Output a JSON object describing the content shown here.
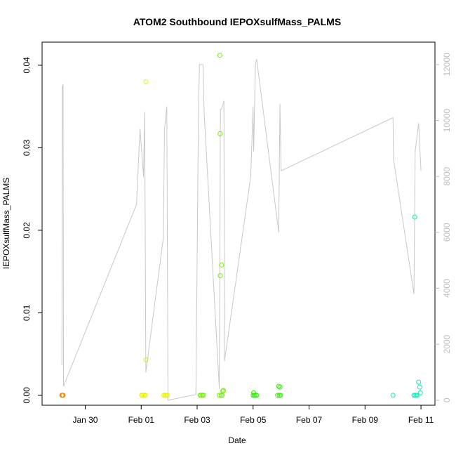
{
  "chart_data": {
    "type": "scatter",
    "title": "ATOM2 Southbound IEPOXsulfMass_PALMS",
    "xlabel": "Date",
    "ylabel": "IEPOXsulfMass_PALMS",
    "xlim": [
      "2017-01-28T11:00",
      "2017-02-11T12:00"
    ],
    "ylim": [
      -0.0012,
      0.0428
    ],
    "y2lim": [
      -180,
      12800
    ],
    "x_ticks": [
      {
        "label": "Jan 30",
        "date": "2017-01-30T00:00"
      },
      {
        "label": "Feb 01",
        "date": "2017-02-01T00:00"
      },
      {
        "label": "Feb 03",
        "date": "2017-02-03T00:00"
      },
      {
        "label": "Feb 05",
        "date": "2017-02-05T00:00"
      },
      {
        "label": "Feb 07",
        "date": "2017-02-07T00:00"
      },
      {
        "label": "Feb 09",
        "date": "2017-02-09T00:00"
      },
      {
        "label": "Feb 11",
        "date": "2017-02-11T00:00"
      }
    ],
    "y_ticks": [
      {
        "label": "0.00",
        "value": 0.0
      },
      {
        "label": "0.01",
        "value": 0.01
      },
      {
        "label": "0.02",
        "value": 0.02
      },
      {
        "label": "0.03",
        "value": 0.03
      },
      {
        "label": "0.04",
        "value": 0.04
      }
    ],
    "y2_ticks": [
      {
        "label": "0",
        "value": 0
      },
      {
        "label": "2000",
        "value": 2000
      },
      {
        "label": "4000",
        "value": 4000
      },
      {
        "label": "6000",
        "value": 6000
      },
      {
        "label": "8000",
        "value": 8000
      },
      {
        "label": "10000",
        "value": 10000
      },
      {
        "label": "12000",
        "value": 12000
      }
    ],
    "grid": false,
    "colors": {
      "altitude_line": "#c8c8c8",
      "axis": "#000000",
      "secondary_axis": "#bdbdbd"
    },
    "point_groups": [
      {
        "color": "#f08a00",
        "points": [
          [
            "2017-01-29T04:00",
            0
          ],
          [
            "2017-01-29T04:30",
            0
          ],
          [
            "2017-01-29T05:00",
            0
          ]
        ]
      },
      {
        "color": "#e6f200",
        "points": [
          [
            "2017-02-01T00:30",
            0
          ],
          [
            "2017-02-01T01:30",
            0
          ],
          [
            "2017-02-01T02:30",
            0
          ],
          [
            "2017-02-01T03:30",
            0
          ],
          [
            "2017-02-01T04:00",
            0.038
          ],
          [
            "2017-02-01T04:10",
            0.0043
          ],
          [
            "2017-02-01T19:30",
            0
          ],
          [
            "2017-02-01T20:30",
            0
          ],
          [
            "2017-02-01T21:30",
            0
          ],
          [
            "2017-02-01T22:30",
            0
          ]
        ]
      },
      {
        "color": "#6ef000",
        "points": [
          [
            "2017-02-03T02:30",
            0
          ],
          [
            "2017-02-03T03:30",
            0
          ],
          [
            "2017-02-03T04:30",
            0
          ],
          [
            "2017-02-03T05:30",
            0
          ],
          [
            "2017-02-03T19:30",
            0.0412
          ],
          [
            "2017-02-03T19:40",
            0.0317
          ],
          [
            "2017-02-03T19:50",
            0.0145
          ],
          [
            "2017-02-03T21:00",
            0.0158
          ],
          [
            "2017-02-03T22:30",
            0.0006
          ],
          [
            "2017-02-03T19:00",
            0
          ],
          [
            "2017-02-03T20:30",
            0
          ],
          [
            "2017-02-03T21:30",
            0
          ],
          [
            "2017-02-03T22:00",
            0.0005
          ]
        ]
      },
      {
        "color": "#2fe800",
        "points": [
          [
            "2017-02-05T00:30",
            0.0003
          ],
          [
            "2017-02-05T00:00",
            0
          ],
          [
            "2017-02-05T01:00",
            0
          ],
          [
            "2017-02-05T02:00",
            0
          ],
          [
            "2017-02-05T03:00",
            0
          ],
          [
            "2017-02-05T22:00",
            0.0011
          ],
          [
            "2017-02-05T23:00",
            0.001
          ],
          [
            "2017-02-05T21:00",
            0
          ],
          [
            "2017-02-05T22:30",
            0
          ],
          [
            "2017-02-05T23:30",
            0
          ]
        ]
      },
      {
        "color": "#1ce8b8",
        "points": [
          [
            "2017-02-10T00:00",
            0
          ],
          [
            "2017-02-10T18:40",
            0.0216
          ],
          [
            "2017-02-10T18:00",
            0
          ],
          [
            "2017-02-10T19:00",
            0
          ],
          [
            "2017-02-10T20:00",
            0
          ],
          [
            "2017-02-10T21:00",
            0
          ],
          [
            "2017-02-10T22:00",
            0.0016
          ],
          [
            "2017-02-10T23:00",
            0.001
          ],
          [
            "2017-02-10T23:30",
            0.0003
          ]
        ]
      }
    ],
    "altitude_series": [
      [
        "2017-01-29T04:00",
        1250
      ],
      [
        "2017-01-29T04:20",
        11200
      ],
      [
        "2017-01-29T05:00",
        11300
      ],
      [
        "2017-01-29T05:20",
        500
      ],
      [
        "2017-01-31T20:00",
        7000
      ],
      [
        "2017-01-31T23:00",
        9700
      ],
      [
        "2017-02-01T02:00",
        8000
      ],
      [
        "2017-02-01T03:00",
        10300
      ],
      [
        "2017-02-01T04:00",
        1000
      ],
      [
        "2017-02-01T19:00",
        5800
      ],
      [
        "2017-02-01T20:00",
        9700
      ],
      [
        "2017-02-01T22:00",
        10500
      ],
      [
        "2017-02-01T23:00",
        0
      ],
      [
        "2017-02-02T23:00",
        200
      ],
      [
        "2017-02-03T01:00",
        9800
      ],
      [
        "2017-02-03T02:00",
        12000
      ],
      [
        "2017-02-03T05:00",
        12000
      ],
      [
        "2017-02-03T06:00",
        10300
      ],
      [
        "2017-02-03T19:00",
        400
      ],
      [
        "2017-02-03T20:00",
        10400
      ],
      [
        "2017-02-03T21:00",
        10400
      ],
      [
        "2017-02-03T23:00",
        10700
      ],
      [
        "2017-02-03T23:30",
        1400
      ],
      [
        "2017-02-04T22:00",
        8000
      ],
      [
        "2017-02-05T00:00",
        10500
      ],
      [
        "2017-02-05T00:30",
        8900
      ],
      [
        "2017-02-05T02:00",
        12000
      ],
      [
        "2017-02-05T03:00",
        12200
      ],
      [
        "2017-02-05T22:00",
        6000
      ],
      [
        "2017-02-05T23:00",
        10600
      ],
      [
        "2017-02-06T00:00",
        8200
      ],
      [
        "2017-02-10T00:00",
        10100
      ],
      [
        "2017-02-10T00:30",
        8600
      ],
      [
        "2017-02-10T18:00",
        3800
      ],
      [
        "2017-02-10T19:00",
        8900
      ],
      [
        "2017-02-10T22:00",
        9900
      ],
      [
        "2017-02-11T00:00",
        8200
      ]
    ]
  }
}
